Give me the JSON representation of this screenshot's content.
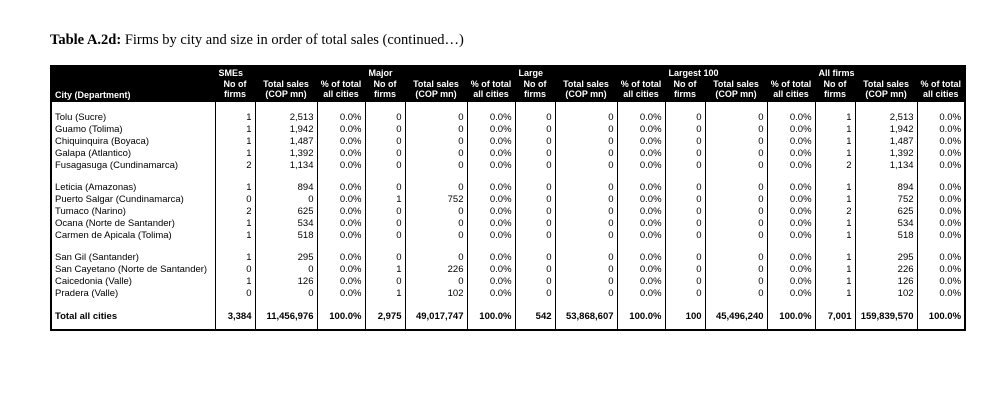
{
  "page": {
    "title_label": "Table A.2d:",
    "title_text": " Firms by city and size in order of total sales (continued…)"
  },
  "table": {
    "first_column_header": "City (Department)",
    "groups": [
      {
        "label": "SMEs"
      },
      {
        "label": "Major"
      },
      {
        "label": "Large"
      },
      {
        "label": "Largest 100"
      },
      {
        "label": "All firms"
      }
    ],
    "subheaders": [
      {
        "line1": "No of",
        "line2": "firms"
      },
      {
        "line1": "Total sales",
        "line2": "(COP mn)"
      },
      {
        "line1": "% of total",
        "line2": "all cities"
      }
    ],
    "row_groups": [
      [
        [
          "Tolu (Sucre)",
          "1",
          "2,513",
          "0.0%",
          "0",
          "0",
          "0.0%",
          "0",
          "0",
          "0.0%",
          "0",
          "0",
          "0.0%",
          "1",
          "2,513",
          "0.0%"
        ],
        [
          "Guamo (Tolima)",
          "1",
          "1,942",
          "0.0%",
          "0",
          "0",
          "0.0%",
          "0",
          "0",
          "0.0%",
          "0",
          "0",
          "0.0%",
          "1",
          "1,942",
          "0.0%"
        ],
        [
          "Chiquinquira (Boyaca)",
          "1",
          "1,487",
          "0.0%",
          "0",
          "0",
          "0.0%",
          "0",
          "0",
          "0.0%",
          "0",
          "0",
          "0.0%",
          "1",
          "1,487",
          "0.0%"
        ],
        [
          "Galapa (Atlantico)",
          "1",
          "1,392",
          "0.0%",
          "0",
          "0",
          "0.0%",
          "0",
          "0",
          "0.0%",
          "0",
          "0",
          "0.0%",
          "1",
          "1,392",
          "0.0%"
        ],
        [
          "Fusagasuga (Cundinamarca)",
          "2",
          "1,134",
          "0.0%",
          "0",
          "0",
          "0.0%",
          "0",
          "0",
          "0.0%",
          "0",
          "0",
          "0.0%",
          "2",
          "1,134",
          "0.0%"
        ]
      ],
      [
        [
          "Leticia (Amazonas)",
          "1",
          "894",
          "0.0%",
          "0",
          "0",
          "0.0%",
          "0",
          "0",
          "0.0%",
          "0",
          "0",
          "0.0%",
          "1",
          "894",
          "0.0%"
        ],
        [
          "Puerto Salgar (Cundinamarca)",
          "0",
          "0",
          "0.0%",
          "1",
          "752",
          "0.0%",
          "0",
          "0",
          "0.0%",
          "0",
          "0",
          "0.0%",
          "1",
          "752",
          "0.0%"
        ],
        [
          "Tumaco (Narino)",
          "2",
          "625",
          "0.0%",
          "0",
          "0",
          "0.0%",
          "0",
          "0",
          "0.0%",
          "0",
          "0",
          "0.0%",
          "2",
          "625",
          "0.0%"
        ],
        [
          "Ocana (Norte de Santander)",
          "1",
          "534",
          "0.0%",
          "0",
          "0",
          "0.0%",
          "0",
          "0",
          "0.0%",
          "0",
          "0",
          "0.0%",
          "1",
          "534",
          "0.0%"
        ],
        [
          "Carmen de Apicala (Tolima)",
          "1",
          "518",
          "0.0%",
          "0",
          "0",
          "0.0%",
          "0",
          "0",
          "0.0%",
          "0",
          "0",
          "0.0%",
          "1",
          "518",
          "0.0%"
        ]
      ],
      [
        [
          "San Gil (Santander)",
          "1",
          "295",
          "0.0%",
          "0",
          "0",
          "0.0%",
          "0",
          "0",
          "0.0%",
          "0",
          "0",
          "0.0%",
          "1",
          "295",
          "0.0%"
        ],
        [
          "San Cayetano (Norte de Santander)",
          "0",
          "0",
          "0.0%",
          "1",
          "226",
          "0.0%",
          "0",
          "0",
          "0.0%",
          "0",
          "0",
          "0.0%",
          "1",
          "226",
          "0.0%"
        ],
        [
          "Caicedonia (Valle)",
          "1",
          "126",
          "0.0%",
          "0",
          "0",
          "0.0%",
          "0",
          "0",
          "0.0%",
          "0",
          "0",
          "0.0%",
          "1",
          "126",
          "0.0%"
        ],
        [
          "Pradera (Valle)",
          "0",
          "0",
          "0.0%",
          "1",
          "102",
          "0.0%",
          "0",
          "0",
          "0.0%",
          "0",
          "0",
          "0.0%",
          "1",
          "102",
          "0.0%"
        ]
      ]
    ],
    "total_row": [
      "Total all cities",
      "3,384",
      "11,456,976",
      "100.0%",
      "2,975",
      "49,017,747",
      "100.0%",
      "542",
      "53,868,607",
      "100.0%",
      "100",
      "45,496,240",
      "100.0%",
      "7,001",
      "159,839,570",
      "100.0%"
    ]
  }
}
